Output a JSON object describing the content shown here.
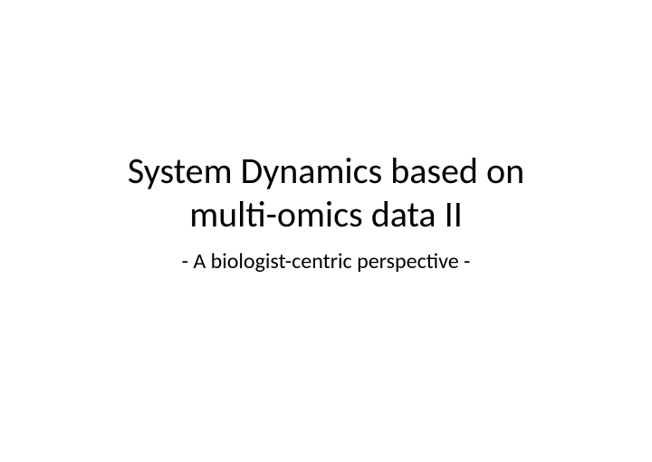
{
  "slide": {
    "title_line1": "System Dynamics based on",
    "title_line2": "multi-omics data II",
    "subtitle": "- A biologist-centric perspective -",
    "background_color": "#ffffff",
    "text_color": "#000000",
    "title_fontsize": 40,
    "subtitle_fontsize": 24,
    "font_family": "Calibri"
  }
}
